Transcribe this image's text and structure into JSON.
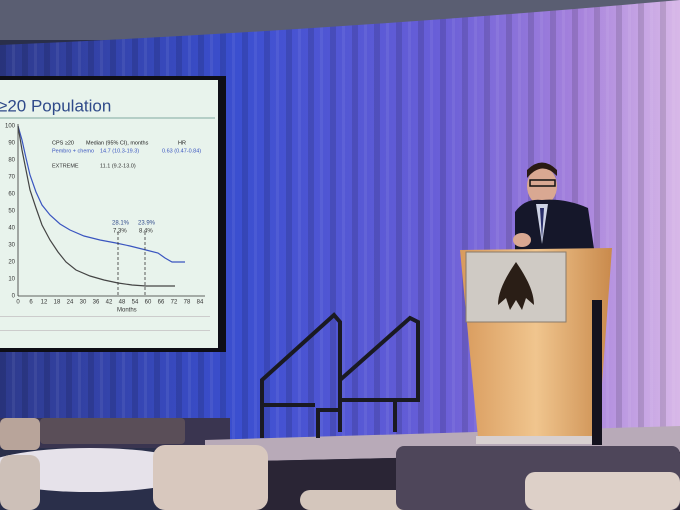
{
  "slide": {
    "title": "≥20 Population",
    "legend": {
      "header": [
        "CPS ≥20",
        "Median (95% CI), months",
        "HR"
      ],
      "rows": [
        [
          "Pembro + chemo",
          "14.7 (10.3-19.3)",
          "0.63 (0.47-0.84)"
        ],
        [
          "EXTREME",
          "11.1 (9.2-13.0)"
        ]
      ]
    },
    "annotations": [
      "28.1%",
      "7.3%",
      "23.9%",
      "8.4%"
    ],
    "y_ticks": [
      0,
      10,
      20,
      30,
      40,
      50,
      60,
      70,
      80,
      90,
      100
    ],
    "x_ticks": [
      0,
      6,
      12,
      18,
      24,
      30,
      36,
      42,
      48,
      54,
      60,
      66,
      72,
      78,
      84
    ],
    "x_label": "Months"
  }
}
